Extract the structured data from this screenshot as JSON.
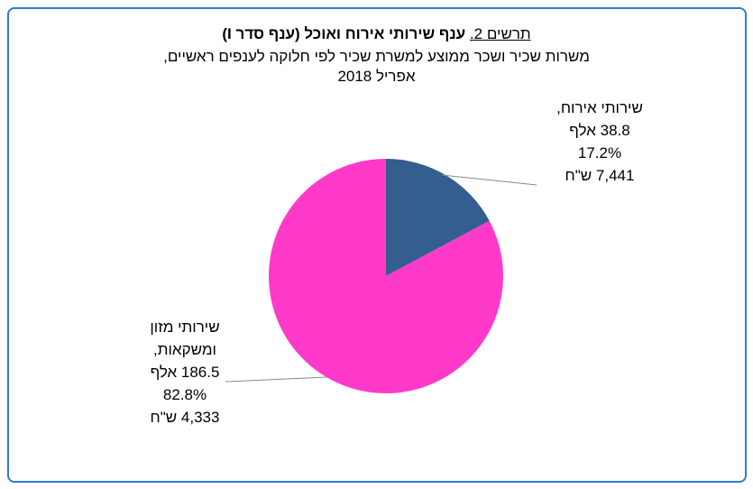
{
  "chart_data": {
    "type": "pie",
    "title_label": "תרשים 2.",
    "title": "ענף שירותי אירוח ואוכל (ענף סדר I)",
    "subtitle": [
      "משרות שכיר ושכר ממוצע למשרת שכיר לפי חלוקה לענפים ראשיים,",
      "אפריל 2018"
    ],
    "categories": [
      "שירותי אירוח,",
      "שירותי מזון ומשקאות,"
    ],
    "values": [
      17.2,
      82.8
    ],
    "value_labels": [
      "17.2%",
      "82.8%"
    ],
    "employees": [
      "38.8 אלף",
      "186.5 אלף"
    ],
    "wages": [
      "7,441 ש\"ח",
      "4,333 ש\"ח"
    ],
    "colors": [
      "#345e8e",
      "#ff3acb"
    ]
  }
}
